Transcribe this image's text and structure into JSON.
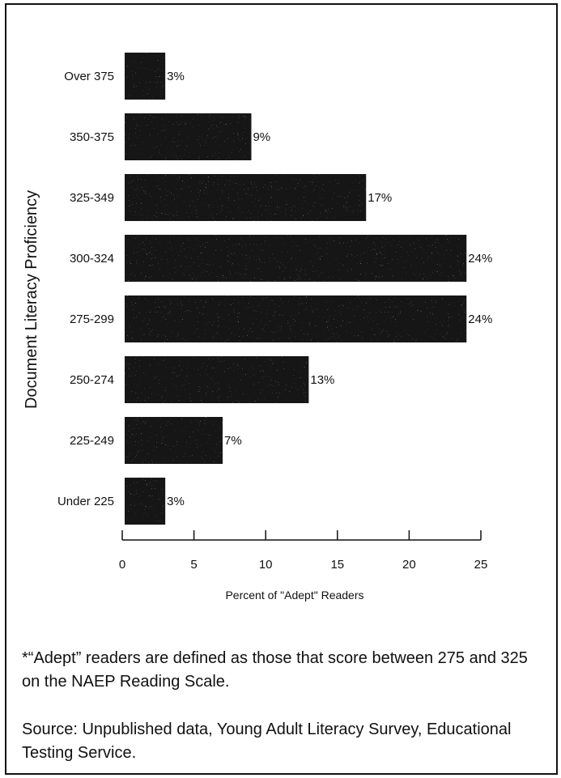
{
  "chart_data": {
    "type": "bar",
    "orientation": "horizontal",
    "categories": [
      "Over 375",
      "350-375",
      "325-349",
      "300-324",
      "275-299",
      "250-274",
      "225-249",
      "Under 225"
    ],
    "values": [
      3,
      9,
      17,
      24,
      24,
      13,
      7,
      3
    ],
    "value_labels": [
      "3%",
      "9%",
      "17%",
      "24%",
      "24%",
      "13%",
      "7%",
      "3%"
    ],
    "xlabel": "Percent of \"Adept\" Readers",
    "ylabel": "Document Literacy Proficiency",
    "xlim": [
      0,
      25
    ],
    "xticks": [
      0,
      5,
      10,
      15,
      20,
      25
    ],
    "grid": false,
    "bar_color": "#161616"
  },
  "notes": {
    "footnote": "*“Adept” readers are defined as those that score between 275 and 325 on the NAEP Reading Scale.",
    "source": "Source: Unpublished data, Young Adult Literacy Survey, Educational Testing Service."
  }
}
